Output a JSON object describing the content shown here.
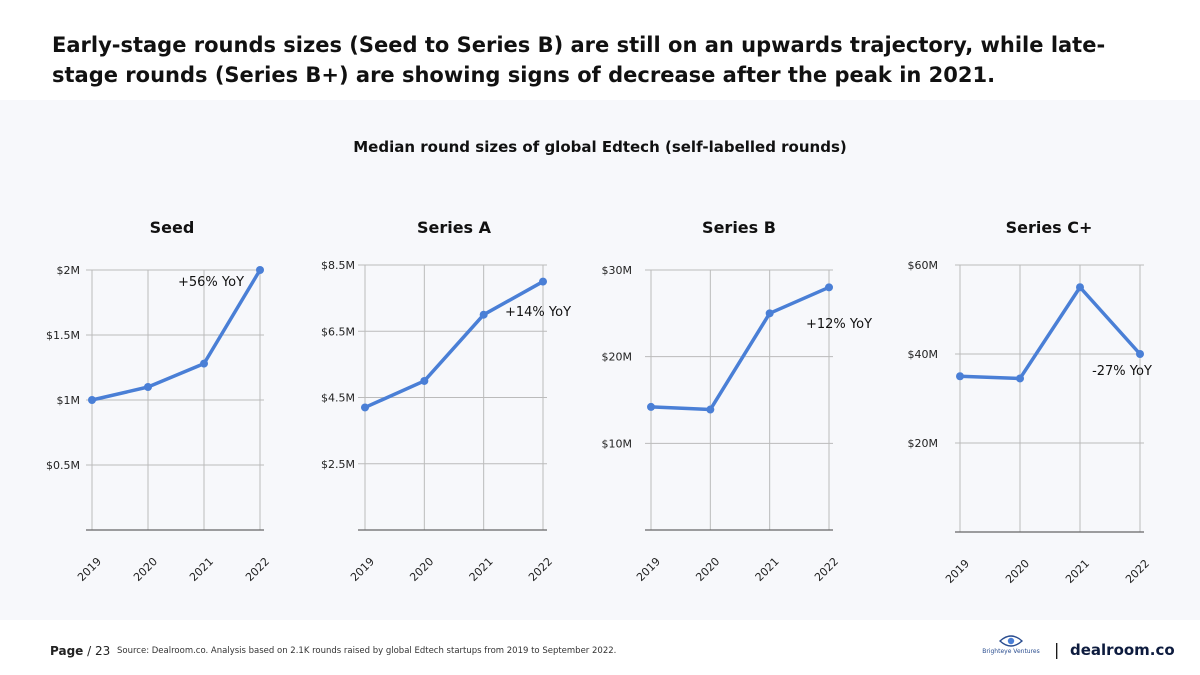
{
  "headline": "Early-stage rounds sizes (Seed to Series B) are still on an upwards trajectory, while late-stage rounds (Series B+) are showing signs of decrease after the peak in 2021.",
  "main_chart_title": "Median round sizes of global Edtech (self-labelled rounds)",
  "line_color": "#4a7fd6",
  "chart_data": [
    {
      "type": "line",
      "title": "Seed",
      "categories": [
        "2019",
        "2020",
        "2021",
        "2022"
      ],
      "values": [
        1.0,
        1.1,
        1.28,
        2.0
      ],
      "ylim": [
        0,
        2.0
      ],
      "ticks": [
        {
          "v": 0.5,
          "label": "$0.5M"
        },
        {
          "v": 1.0,
          "label": "$1M"
        },
        {
          "v": 1.5,
          "label": "$1.5M"
        },
        {
          "v": 2.0,
          "label": "$2M"
        }
      ],
      "annotation": "+56% YoY"
    },
    {
      "type": "line",
      "title": "Series A",
      "categories": [
        "2019",
        "2020",
        "2021",
        "2022"
      ],
      "values": [
        4.2,
        5.0,
        7.0,
        8.0
      ],
      "ylim": [
        0.5,
        8.5
      ],
      "ticks": [
        {
          "v": 2.5,
          "label": "$2.5M"
        },
        {
          "v": 4.5,
          "label": "$4.5M"
        },
        {
          "v": 6.5,
          "label": "$6.5M"
        },
        {
          "v": 8.5,
          "label": "$8.5M"
        }
      ],
      "annotation": "+14% YoY"
    },
    {
      "type": "line",
      "title": "Series B",
      "categories": [
        "2019",
        "2020",
        "2021",
        "2022"
      ],
      "values": [
        14.2,
        13.9,
        25.0,
        28.0
      ],
      "ylim": [
        0,
        30
      ],
      "ticks": [
        {
          "v": 10,
          "label": "$10M"
        },
        {
          "v": 20,
          "label": "$20M"
        },
        {
          "v": 30,
          "label": "$30M"
        }
      ],
      "annotation": "+12% YoY"
    },
    {
      "type": "line",
      "title": "Series C+",
      "categories": [
        "2019",
        "2020",
        "2021",
        "2022"
      ],
      "values": [
        35.0,
        34.5,
        55.0,
        40.0
      ],
      "ylim": [
        0,
        60
      ],
      "ticks": [
        {
          "v": 20,
          "label": "$20M"
        },
        {
          "v": 40,
          "label": "$40M"
        },
        {
          "v": 60,
          "label": "$60M"
        }
      ],
      "annotation": "-27% YoY"
    }
  ],
  "footer": {
    "page_label": "Page",
    "page_number": "/ 23",
    "source": "Source: Dealroom.co. Analysis based on 2.1K rounds raised by global Edtech startups from 2019 to September 2022.",
    "logo_brighteye": "Brighteye Ventures",
    "separator": "|",
    "logo_dealroom": "dealroom.co"
  }
}
